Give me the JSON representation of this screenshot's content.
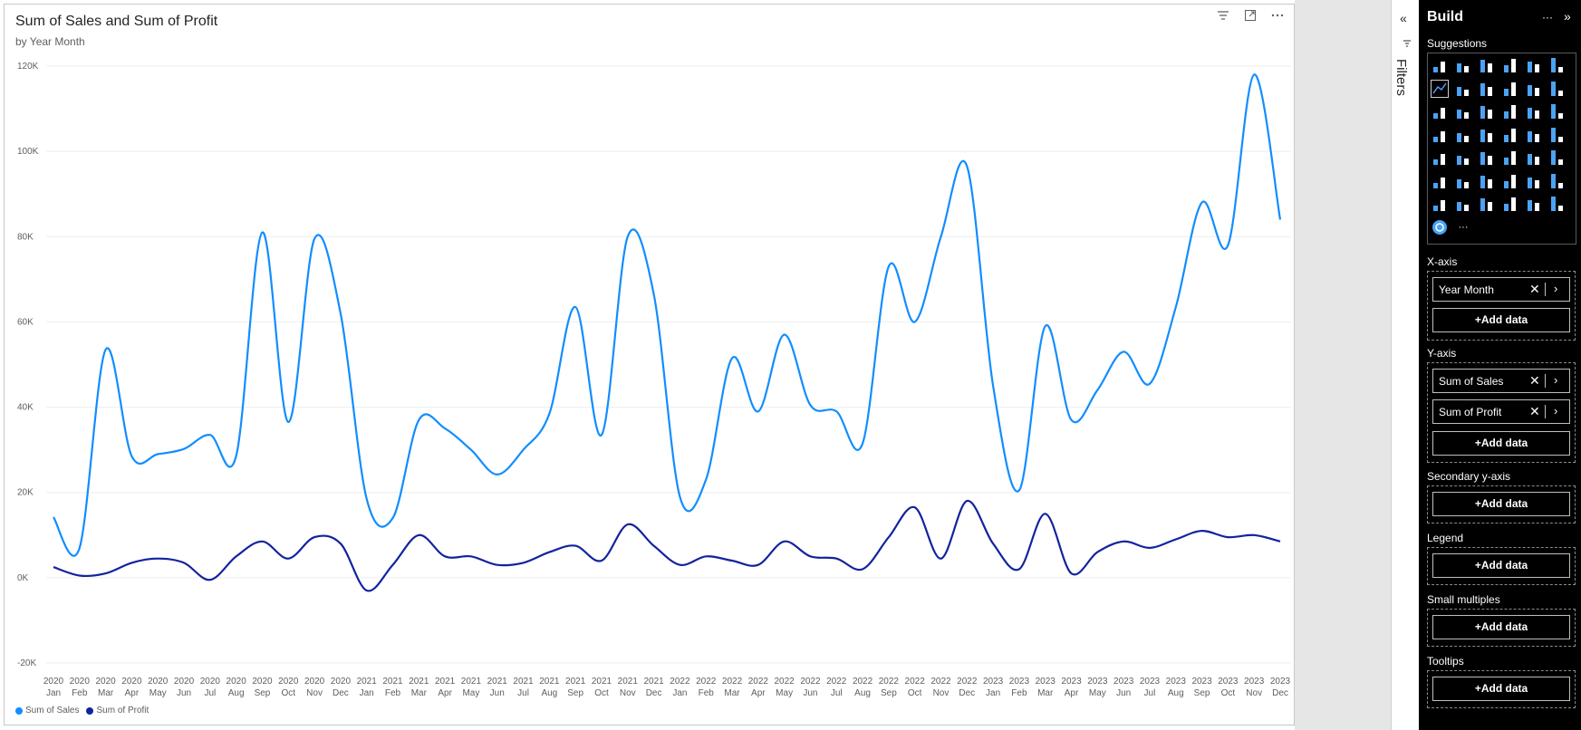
{
  "visual": {
    "title": "Sum of Sales and Sum of Profit",
    "subtitle": "by Year Month",
    "icons": [
      "filter-icon",
      "focus-mode-icon",
      "more-options-icon"
    ]
  },
  "chart_data": {
    "type": "line",
    "title": "Sum of Sales and Sum of Profit",
    "subtitle": "by Year Month",
    "xlabel": "",
    "ylabel": "",
    "ylim": [
      -20000,
      120000
    ],
    "yticks": [
      -20000,
      0,
      20000,
      40000,
      60000,
      80000,
      100000,
      120000
    ],
    "ytick_labels": [
      "-20K",
      "0K",
      "20K",
      "40K",
      "60K",
      "80K",
      "100K",
      "120K"
    ],
    "grid": true,
    "legend": "bottom-left",
    "years": [
      "2020",
      "2020",
      "2020",
      "2020",
      "2020",
      "2020",
      "2020",
      "2020",
      "2020",
      "2020",
      "2020",
      "2020",
      "2021",
      "2021",
      "2021",
      "2021",
      "2021",
      "2021",
      "2021",
      "2021",
      "2021",
      "2021",
      "2021",
      "2021",
      "2022",
      "2022",
      "2022",
      "2022",
      "2022",
      "2022",
      "2022",
      "2022",
      "2022",
      "2022",
      "2022",
      "2022",
      "2023",
      "2023",
      "2023",
      "2023",
      "2023",
      "2023",
      "2023",
      "2023",
      "2023",
      "2023",
      "2023",
      "2023"
    ],
    "months": [
      "Jan",
      "Feb",
      "Mar",
      "Apr",
      "May",
      "Jun",
      "Jul",
      "Aug",
      "Sep",
      "Oct",
      "Nov",
      "Dec",
      "Jan",
      "Feb",
      "Mar",
      "Apr",
      "May",
      "Jun",
      "Jul",
      "Aug",
      "Sep",
      "Oct",
      "Nov",
      "Dec",
      "Jan",
      "Feb",
      "Mar",
      "Apr",
      "May",
      "Jun",
      "Jul",
      "Aug",
      "Sep",
      "Oct",
      "Nov",
      "Dec",
      "Jan",
      "Feb",
      "Mar",
      "Apr",
      "May",
      "Jun",
      "Jul",
      "Aug",
      "Sep",
      "Oct",
      "Nov",
      "Dec"
    ],
    "series": [
      {
        "name": "Sum of Sales",
        "color": "#118dff",
        "values": [
          14200,
          7000,
          53500,
          28500,
          29000,
          30200,
          33500,
          28600,
          81000,
          36500,
          79500,
          62000,
          18500,
          14000,
          37000,
          35000,
          30000,
          24200,
          30000,
          38500,
          63500,
          33500,
          80000,
          66500,
          19000,
          23000,
          51500,
          39000,
          57000,
          40500,
          39000,
          31500,
          73000,
          60000,
          80000,
          96500,
          45000,
          20500,
          59000,
          37000,
          44000,
          53000,
          45500,
          63500,
          88000,
          78000,
          118000,
          84000
        ]
      },
      {
        "name": "Sum of Profit",
        "color": "#12239e",
        "values": [
          2500,
          500,
          1000,
          3500,
          4500,
          3500,
          -500,
          5000,
          8500,
          4500,
          9500,
          8000,
          -3000,
          3000,
          10000,
          5000,
          5000,
          3000,
          3500,
          6000,
          7500,
          4000,
          12500,
          7500,
          3000,
          5000,
          4000,
          3000,
          8500,
          5000,
          4500,
          2000,
          9500,
          16500,
          4500,
          18000,
          8000,
          2000,
          15000,
          1000,
          6000,
          8500,
          7000,
          9000,
          11000,
          9500,
          10000,
          8500
        ]
      }
    ]
  },
  "legend": {
    "items": [
      {
        "label": "Sum of Sales",
        "color": "#118dff"
      },
      {
        "label": "Sum of Profit",
        "color": "#12239e"
      }
    ]
  },
  "filters_pane": {
    "label": "Filters",
    "collapse_glyph": "«"
  },
  "build_pane": {
    "title": "Build",
    "more_glyph": "···",
    "expand_glyph": "»",
    "suggestions_label": "Suggestions",
    "visual_icons": [
      "stacked-bar-icon",
      "stacked-column-icon",
      "clustered-bar-icon",
      "clustered-column-icon",
      "100-stacked-bar-icon",
      "100-stacked-column-icon",
      "line-chart-icon",
      "area-chart-icon",
      "stacked-area-icon",
      "100-stacked-area-icon",
      "line-stacked-column-icon",
      "line-clustered-column-icon",
      "ribbon-chart-icon",
      "waterfall-icon",
      "funnel-icon",
      "scatter-icon",
      "pie-chart-icon",
      "donut-chart-icon",
      "treemap-icon",
      "map-icon",
      "filled-map-icon",
      "gauge-icon",
      "card-icon",
      "kpi-icon",
      "slicer-icon",
      "table-icon",
      "matrix-icon",
      "r-script-icon",
      "python-icon",
      "key-influencers-icon",
      "decomposition-tree-icon",
      "qa-icon",
      "narrative-icon",
      "paginated-report-icon",
      "metrics-icon",
      "power-apps-icon",
      "power-automate-icon",
      "azure-map-icon",
      "shape-map-icon",
      "arcgis-icon",
      "powerapps-alt-icon",
      "flow-icon",
      "qna-bubble-icon",
      "more-visuals-icon"
    ],
    "more_visuals_glyph": "···",
    "wells": [
      {
        "label": "X-axis",
        "fields": [
          "Year Month"
        ],
        "add_label": "+Add data"
      },
      {
        "label": "Y-axis",
        "fields": [
          "Sum of Sales",
          "Sum of Profit"
        ],
        "add_label": "+Add data"
      },
      {
        "label": "Secondary y-axis",
        "fields": [],
        "add_label": "+Add data"
      },
      {
        "label": "Legend",
        "fields": [],
        "add_label": "+Add data"
      },
      {
        "label": "Small multiples",
        "fields": [],
        "add_label": "+Add data"
      },
      {
        "label": "Tooltips",
        "fields": [],
        "add_label": "+Add data"
      }
    ]
  }
}
